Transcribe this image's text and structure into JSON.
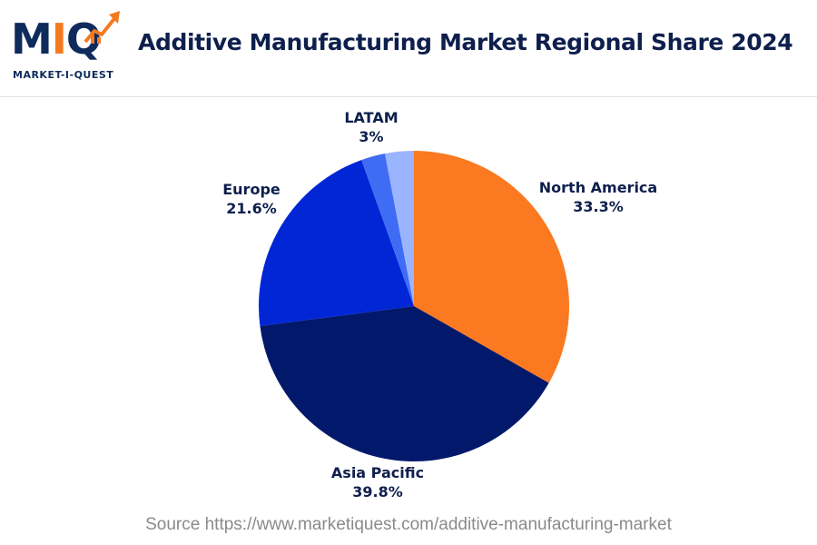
{
  "logo": {
    "letters_m": "M",
    "letters_i": "I",
    "letters_q": "Q",
    "subtitle": "MARKET-I-QUEST"
  },
  "chart_data": {
    "type": "pie",
    "title": "Additive Manufacturing Market Regional Share 2024",
    "slices": [
      {
        "label": "North America",
        "value": 33.3,
        "display": "33.3%",
        "color": "#fa7921"
      },
      {
        "label": "Asia Pacific",
        "value": 39.8,
        "display": "39.8%",
        "color": "#02186b"
      },
      {
        "label": "Europe",
        "value": 21.6,
        "display": "21.6%",
        "color": "#0026d6"
      },
      {
        "label": "",
        "value": 2.5,
        "display": "",
        "color": "#3f6cf5"
      },
      {
        "label": "LATAM",
        "value": 3.0,
        "display": "3%",
        "color": "#9bb4ff"
      }
    ]
  },
  "footer": {
    "source": "Source https://www.marketiquest.com/additive-manufacturing-market"
  }
}
